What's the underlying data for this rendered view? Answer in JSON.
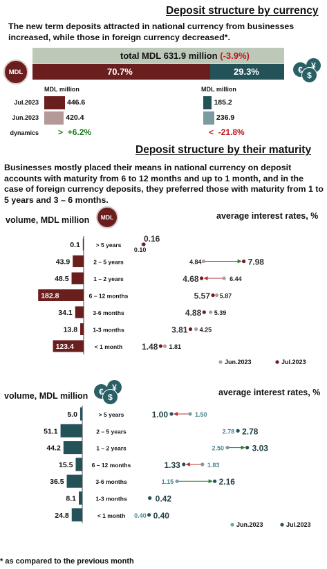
{
  "header": {
    "title": "Deposit structure by currency",
    "lead": "The new term deposits attracted in national currency from businesses increased, while those in foreign currency decreased*."
  },
  "total_bar": {
    "label": "total MDL 631.9 million",
    "change": "(-3.9%)",
    "mdl_share_label": "70.7%",
    "fx_share_label": "29.3%",
    "mdl_share": 70.7,
    "fx_share": 29.3,
    "mdl_badge": "MDL"
  },
  "currency_compare": {
    "unit": "MDL million",
    "rows": [
      "Jul.2023",
      "Jun.2023",
      "dynamics"
    ],
    "mdl": {
      "jul": "446.6",
      "jun": "420.4",
      "dyn_arrow": ">",
      "dyn": "+6.2%"
    },
    "fx": {
      "jul": "185.2",
      "jun": "236.9",
      "dyn_arrow": "<",
      "dyn": "-21.8%"
    }
  },
  "maturity": {
    "title": "Deposit structure by their maturity",
    "lead": "Businesses mostly placed their means in national currency on deposit accounts with maturity from 6 to 12 months and up to 1 month, and in the case of foreign currency deposits, they preferred those with maturity from 1 to 5 years and 3 – 6 months.",
    "mdl_volume_label": "volume, MDL million",
    "mdl_badge": "MDL",
    "fx_volume_label": "volume, MDL million",
    "rates_label": "average interest rates, %",
    "legend_jun": "Jun.2023",
    "legend_jul": "Jul.2023",
    "footnote": "* as compared to the previous month"
  },
  "chart_data": [
    {
      "type": "bar",
      "title": "Deposit structure by currency (MDL million)",
      "categories": [
        "Jul.2023",
        "Jun.2023"
      ],
      "series": [
        {
          "name": "MDL",
          "values": [
            446.6,
            420.4
          ]
        },
        {
          "name": "foreign currency",
          "values": [
            185.2,
            236.9
          ]
        }
      ]
    },
    {
      "type": "bar",
      "xlabel": "volume, MDL million",
      "categories": [
        "> 5 years",
        "2 – 5 years",
        "1 – 2 years",
        "6 – 12 months",
        "3-6 months",
        "1-3 months",
        "< 1 month"
      ],
      "values": [
        0.1,
        43.9,
        48.5,
        182.8,
        34.1,
        13.8,
        123.4
      ],
      "value_labels": [
        "0.1",
        "43.9",
        "48.5",
        "182.8",
        "34.1",
        "13.8",
        "123.4"
      ]
    },
    {
      "type": "scatter",
      "ylabel": "average interest rates, %",
      "categories": [
        "> 5 years",
        "2 – 5 years",
        "1 – 2 years",
        "6 – 12 months",
        "3-6 months",
        "1-3 months",
        "< 1 month"
      ],
      "series": [
        {
          "name": "Jun.2023",
          "values": [
            0.1,
            4.84,
            6.44,
            5.87,
            5.39,
            4.25,
            1.81
          ]
        },
        {
          "name": "Jul.2023",
          "values": [
            0.16,
            7.98,
            4.68,
            5.57,
            4.88,
            3.81,
            1.48
          ]
        }
      ],
      "jun_labels": [
        "0.10",
        "4.84",
        "6.44",
        "5.87",
        "5.39",
        "4.25",
        "1.81"
      ],
      "jul_labels": [
        "0.16",
        "7.98",
        "4.68",
        "5.57",
        "4.88",
        "3.81",
        "1.48"
      ]
    },
    {
      "type": "bar",
      "xlabel": "volume, MDL million",
      "categories": [
        "> 5 years",
        "2 – 5 years",
        "1 – 2 years",
        "6 – 12 months",
        "3-6 months",
        "1-3 months",
        "< 1 month"
      ],
      "values": [
        5.0,
        51.1,
        44.2,
        15.5,
        36.5,
        8.1,
        24.8
      ],
      "value_labels": [
        "5.0",
        "51.1",
        "44.2",
        "15.5",
        "36.5",
        "8.1",
        "24.8"
      ]
    },
    {
      "type": "scatter",
      "ylabel": "average interest rates, %",
      "categories": [
        "> 5 years",
        "2 – 5 years",
        "1 – 2 years",
        "6 – 12 months",
        "3-6 months",
        "1-3 months",
        "< 1 month"
      ],
      "series": [
        {
          "name": "Jun.2023",
          "values": [
            1.5,
            2.78,
            2.5,
            1.83,
            1.15,
            0.42,
            0.4
          ]
        },
        {
          "name": "Jul.2023",
          "values": [
            1.0,
            2.78,
            3.03,
            1.33,
            2.16,
            0.42,
            0.4
          ]
        }
      ],
      "jun_labels": [
        "1.50",
        "2.78",
        "2.50",
        "1.83",
        "1.15",
        "",
        "0.40"
      ],
      "jul_labels": [
        "1.00",
        "2.78",
        "3.03",
        "1.33",
        "2.16",
        "0.42",
        "0.40"
      ]
    }
  ],
  "colors": {
    "mdl_dark": "#6b1e1e",
    "mdl_light": "#b39a98",
    "fx_dark": "#235259",
    "fx_light": "#7a9ca0",
    "gray_bar": "#bcc8b8",
    "green": "#1a7a1a",
    "red": "#c21818",
    "arrow_up": "#2f7d2f",
    "arrow_down": "#b73030"
  }
}
